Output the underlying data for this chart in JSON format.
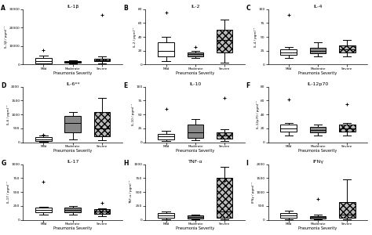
{
  "panels": [
    {
      "label": "A",
      "title": "IL-1β",
      "ylabel": "IL-1β / pgml⁻¹",
      "medians": [
        2000,
        1500,
        2500
      ],
      "q1": [
        500,
        1200,
        1800
      ],
      "q3": [
        3500,
        1800,
        3200
      ],
      "whislo": [
        100,
        800,
        800
      ],
      "whishi": [
        5000,
        2200,
        4500
      ],
      "fliers_y": [
        8000,
        null,
        27000
      ],
      "fliers_x": [
        0,
        null,
        2
      ],
      "ylim": [
        0,
        30000
      ],
      "yticks": [
        0,
        10000,
        20000,
        30000
      ]
    },
    {
      "label": "B",
      "title": "IL-2",
      "ylabel": "IL-2 / pgml⁻¹",
      "medians": [
        20,
        15,
        35
      ],
      "q1": [
        12,
        12,
        18
      ],
      "q3": [
        32,
        17,
        50
      ],
      "whislo": [
        5,
        10,
        3
      ],
      "whishi": [
        40,
        20,
        65
      ],
      "fliers_y": [
        75,
        25,
        null
      ],
      "fliers_x": [
        0,
        1,
        null
      ],
      "ylim": [
        0,
        80
      ],
      "yticks": [
        0,
        20,
        40,
        60,
        80
      ]
    },
    {
      "label": "C",
      "title": "IL-4",
      "ylabel": "IL-4 / pgml⁻¹",
      "medians": [
        22,
        25,
        28
      ],
      "q1": [
        18,
        20,
        22
      ],
      "q3": [
        28,
        30,
        35
      ],
      "whislo": [
        12,
        15,
        15
      ],
      "whishi": [
        32,
        40,
        45
      ],
      "fliers_y": [
        90,
        null,
        null
      ],
      "fliers_x": [
        0,
        null,
        null
      ],
      "ylim": [
        0,
        100
      ],
      "yticks": [
        0,
        25,
        50,
        75,
        100
      ]
    },
    {
      "label": "D",
      "title": "IL-6**",
      "ylabel": "IL-6 / pgml⁻¹",
      "medians": [
        100,
        700,
        500
      ],
      "q1": [
        50,
        350,
        200
      ],
      "q3": [
        180,
        950,
        1100
      ],
      "whislo": [
        20,
        100,
        80
      ],
      "whishi": [
        230,
        1100,
        1600
      ],
      "fliers_y": [
        280,
        null,
        null
      ],
      "fliers_x": [
        0,
        null,
        null
      ],
      "ylim": [
        0,
        2000
      ],
      "yticks": [
        0,
        500,
        1000,
        1500,
        2000
      ]
    },
    {
      "label": "E",
      "title": "IL-10",
      "ylabel": "IL-10 / pgml⁻¹",
      "medians": [
        10,
        18,
        12
      ],
      "q1": [
        5,
        8,
        6
      ],
      "q3": [
        15,
        32,
        18
      ],
      "whislo": [
        2,
        4,
        2
      ],
      "whishi": [
        20,
        42,
        24
      ],
      "fliers_y": [
        60,
        null,
        80
      ],
      "fliers_x": [
        0,
        null,
        2
      ],
      "ylim": [
        0,
        100
      ],
      "yticks": [
        0,
        25,
        50,
        75,
        100
      ]
    },
    {
      "label": "F",
      "title": "IL-12p70",
      "ylabel": "IL-12p70 / pgml⁻¹",
      "medians": [
        20,
        18,
        20
      ],
      "q1": [
        15,
        14,
        15
      ],
      "q3": [
        25,
        22,
        25
      ],
      "whislo": [
        10,
        10,
        10
      ],
      "whishi": [
        28,
        26,
        28
      ],
      "fliers_y": [
        62,
        null,
        55
      ],
      "fliers_x": [
        0,
        null,
        2
      ],
      "ylim": [
        0,
        80
      ],
      "yticks": [
        0,
        20,
        40,
        60,
        80
      ]
    },
    {
      "label": "G",
      "title": "IL-17",
      "ylabel": "IL-17 / pgml⁻¹",
      "medians": [
        180,
        175,
        155
      ],
      "q1": [
        140,
        135,
        110
      ],
      "q3": [
        215,
        215,
        185
      ],
      "whislo": [
        100,
        100,
        70
      ],
      "whishi": [
        240,
        245,
        205
      ],
      "fliers_y": [
        680,
        null,
        310
      ],
      "fliers_x": [
        0,
        null,
        2
      ],
      "ylim": [
        0,
        1000
      ],
      "yticks": [
        0,
        250,
        500,
        750,
        1000
      ]
    },
    {
      "label": "H",
      "title": "TNF-α",
      "ylabel": "TNF-α / pgml⁻¹",
      "medians": [
        75,
        55,
        150
      ],
      "q1": [
        40,
        25,
        40
      ],
      "q3": [
        120,
        80,
        750
      ],
      "whislo": [
        15,
        15,
        15
      ],
      "whishi": [
        145,
        100,
        950
      ],
      "fliers_y": [
        null,
        null,
        700
      ],
      "fliers_x": [
        null,
        null,
        2
      ],
      "ylim": [
        0,
        1000
      ],
      "yticks": [
        0,
        250,
        500,
        750,
        1000
      ]
    },
    {
      "label": "I",
      "title": "IFNγ",
      "ylabel": "IFNγ / pgml⁻¹",
      "medians": [
        150,
        90,
        180
      ],
      "q1": [
        80,
        55,
        70
      ],
      "q3": [
        230,
        140,
        650
      ],
      "whislo": [
        30,
        20,
        25
      ],
      "whishi": [
        320,
        190,
        1450
      ],
      "fliers_y": [
        null,
        750,
        null
      ],
      "fliers_x": [
        null,
        1,
        null
      ],
      "ylim": [
        0,
        2000
      ],
      "yticks": [
        0,
        500,
        1000,
        1500,
        2000
      ]
    }
  ],
  "group_labels": [
    "Mild",
    "Moderate",
    "Severe"
  ],
  "xlabel": "Pneumonia Severity",
  "box_colors": [
    "white",
    "#888888",
    "#bbbbbb"
  ],
  "box_hatches": [
    "",
    "",
    "...."
  ],
  "background": "white"
}
